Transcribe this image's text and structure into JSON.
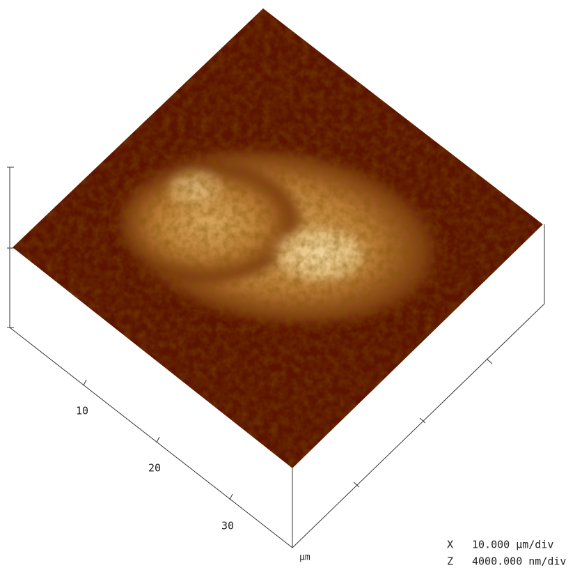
{
  "x_axis": {
    "ticks": [
      "10",
      "20",
      "30"
    ],
    "unit": "µm"
  },
  "scale": [
    {
      "axis": "X",
      "value": "10.000 µm/div"
    },
    {
      "axis": "Z",
      "value": "4000.000 nm/div"
    }
  ]
}
